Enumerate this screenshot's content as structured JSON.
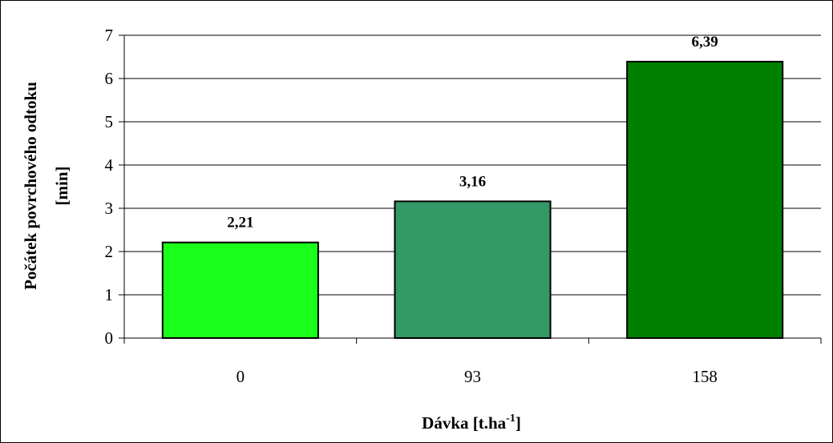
{
  "chart_data": {
    "type": "bar",
    "categories": [
      "0",
      "93",
      "158"
    ],
    "values": [
      2.21,
      3.16,
      6.39
    ],
    "data_labels": [
      "2,21",
      "3,16",
      "6,39"
    ],
    "bar_colors": [
      "#1aff1a",
      "#339966",
      "#008000"
    ],
    "xlabel": "Dávka [t.ha",
    "xlabel_superscript": "-1",
    "xlabel_suffix": "]",
    "ylabel_line1": "Počátek povrchového odtoku",
    "ylabel_line2": "[min]",
    "ylim": [
      0,
      7
    ],
    "yticks": [
      "0",
      "1",
      "2",
      "3",
      "4",
      "5",
      "6",
      "7"
    ],
    "grid": true,
    "legend": false
  }
}
